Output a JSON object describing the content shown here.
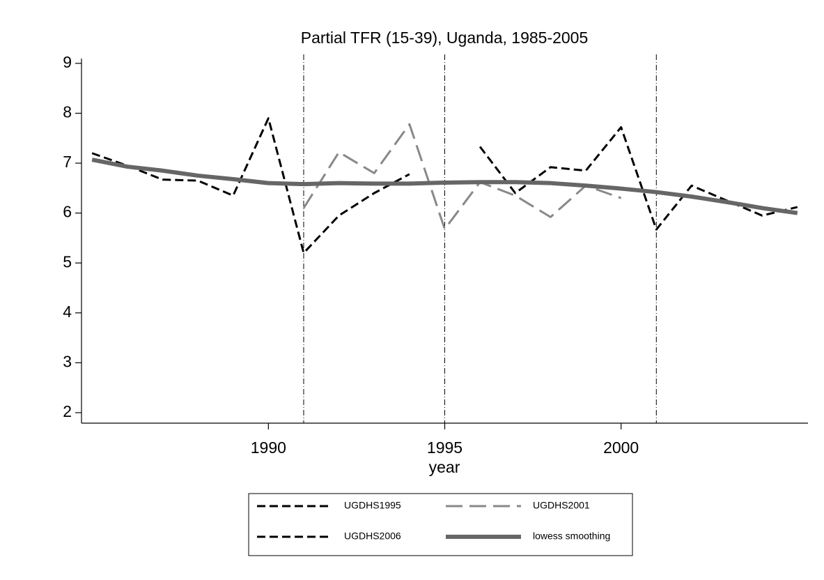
{
  "chart_data": {
    "type": "line",
    "title": "Partial TFR (15-39), Uganda, 1985-2005",
    "x_label": "year",
    "x": [
      1985,
      1986,
      1987,
      1988,
      1989,
      1990,
      1991,
      1992,
      1993,
      1994,
      1995,
      1996,
      1997,
      1998,
      1999,
      2000,
      2001,
      2002,
      2003,
      2004,
      2005
    ],
    "series": [
      {
        "name": "UGDHS1995",
        "color": "#000000",
        "dash": "12 6",
        "width": 3,
        "values": [
          7.2,
          6.95,
          6.67,
          6.65,
          6.35,
          7.9,
          5.2,
          5.95,
          6.4,
          6.78,
          null,
          null,
          null,
          null,
          null,
          null,
          null,
          null,
          null,
          null,
          null
        ]
      },
      {
        "name": "UGDHS2001",
        "color": "#888888",
        "dash": "24 10",
        "width": 3,
        "values": [
          null,
          null,
          null,
          null,
          null,
          null,
          6.1,
          7.22,
          6.8,
          7.78,
          5.68,
          6.62,
          6.35,
          5.92,
          6.55,
          6.3,
          null,
          null,
          null,
          null,
          null
        ]
      },
      {
        "name": "UGDHS2006",
        "color": "#000000",
        "dash": "12 6",
        "width": 3,
        "values": [
          null,
          null,
          null,
          null,
          null,
          null,
          null,
          null,
          null,
          null,
          null,
          7.33,
          6.4,
          6.92,
          6.85,
          7.72,
          5.67,
          6.55,
          6.25,
          5.95,
          6.12
        ]
      },
      {
        "name": "lowess smoothing",
        "color": "#666666",
        "dash": "none",
        "width": 6,
        "values": [
          7.07,
          6.93,
          6.85,
          6.75,
          6.68,
          6.6,
          6.58,
          6.6,
          6.59,
          6.59,
          6.61,
          6.62,
          6.62,
          6.6,
          6.55,
          6.49,
          6.42,
          6.33,
          6.22,
          6.1,
          6.0
        ]
      }
    ],
    "vlines": [
      1991,
      1995,
      2001
    ],
    "xlim": [
      1984.7,
      2005.3
    ],
    "xticks": [
      1990,
      1995,
      2000
    ],
    "ylim": [
      1.79,
      9.18
    ],
    "yticks": [
      2,
      3,
      4,
      5,
      6,
      7,
      8,
      9
    ],
    "grid": false,
    "legend": "bottom"
  }
}
